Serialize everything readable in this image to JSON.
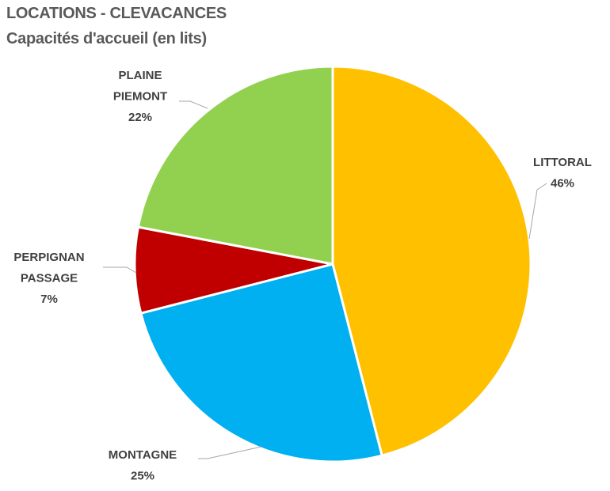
{
  "chart_data": {
    "type": "pie",
    "title": "LOCATIONS - CLEVACANCES",
    "subtitle": "Capacités d'accueil (en lits)",
    "start_angle": "top",
    "direction": "clockwise",
    "slices": [
      {
        "label": [
          "LITTORAL"
        ],
        "value": 46,
        "value_label": "46%",
        "color": "#FFC000"
      },
      {
        "label": [
          "MONTAGNE"
        ],
        "value": 25,
        "value_label": "25%",
        "color": "#00B0F0"
      },
      {
        "label": [
          "PERPIGNAN",
          "PASSAGE"
        ],
        "value": 7,
        "value_label": "7%",
        "color": "#C00000"
      },
      {
        "label": [
          "PLAINE",
          "PIEMONT"
        ],
        "value": 22,
        "value_label": "22%",
        "color": "#92D050"
      }
    ],
    "legend": "none (data labels with leader lines)"
  }
}
